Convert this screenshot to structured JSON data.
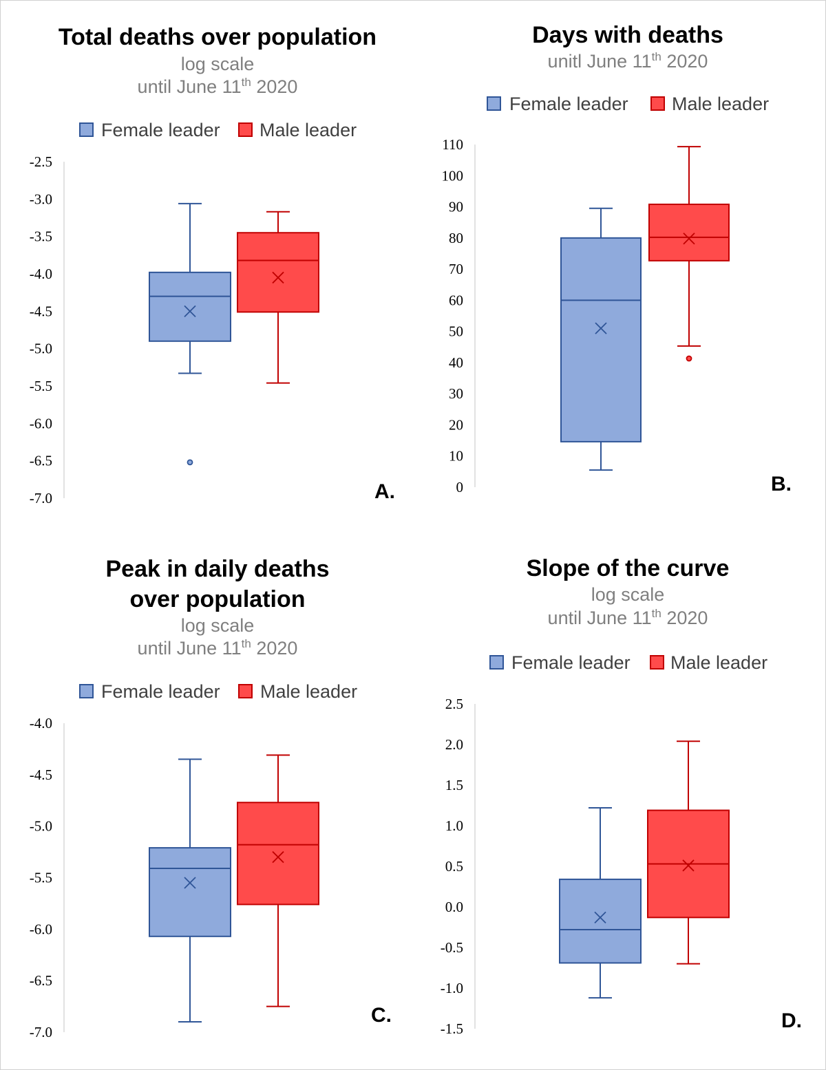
{
  "chart_data": [
    {
      "type": "box",
      "panel_label": "A.",
      "title": [
        "Total deaths over population"
      ],
      "subtitle": [
        {
          "text": "log scale"
        },
        {
          "text": "until June 11",
          "sup": "th",
          "after": " 2020"
        }
      ],
      "legend": [
        "Female leader",
        "Male leader"
      ],
      "ylim": [
        -7.0,
        -2.5
      ],
      "yticks": [
        "-2.5",
        "-3.0",
        "-3.5",
        "-4.0",
        "-4.5",
        "-5.0",
        "-5.5",
        "-6.0",
        "-6.5",
        "-7.0"
      ],
      "series": [
        {
          "name": "Female leader",
          "whisker_high": -3.06,
          "q3": -3.98,
          "median": -4.3,
          "mean": -4.5,
          "q1": -4.9,
          "whisker_low": -5.33,
          "outliers": [
            -6.52
          ]
        },
        {
          "name": "Male leader",
          "whisker_high": -3.17,
          "q3": -3.45,
          "median": -3.82,
          "mean": -4.05,
          "q1": -4.51,
          "whisker_low": -5.46,
          "outliers": []
        }
      ]
    },
    {
      "type": "box",
      "panel_label": "B.",
      "title": [
        "Days with deaths"
      ],
      "subtitle": [
        {
          "text": "unitl June 11",
          "sup": "th",
          "after": " 2020"
        }
      ],
      "legend": [
        "Female leader",
        "Male leader"
      ],
      "ylim": [
        0,
        110
      ],
      "yticks": [
        "110",
        "100",
        "90",
        "80",
        "70",
        "60",
        "50",
        "40",
        "30",
        "20",
        "10",
        "0"
      ],
      "series": [
        {
          "name": "Female leader",
          "whisker_high": 89.5,
          "q3": 80,
          "median": 60,
          "mean": 51,
          "q1": 14.6,
          "whisker_low": 5.5,
          "outliers": []
        },
        {
          "name": "Male leader",
          "whisker_high": 109.3,
          "q3": 90.8,
          "median": 80.2,
          "mean": 79.8,
          "q1": 72.7,
          "whisker_low": 45.3,
          "outliers": [
            41.3
          ]
        }
      ]
    },
    {
      "type": "box",
      "panel_label": "C.",
      "title": [
        "Peak in daily deaths",
        "over population"
      ],
      "subtitle": [
        {
          "text": "log scale"
        },
        {
          "text": "until June 11",
          "sup": "th",
          "after": " 2020"
        }
      ],
      "legend": [
        "Female leader",
        "Male leader"
      ],
      "ylim": [
        -7.0,
        -4.0
      ],
      "yticks": [
        "-4.0",
        "-4.5",
        "-5.0",
        "-5.5",
        "-6.0",
        "-6.5",
        "-7.0"
      ],
      "series": [
        {
          "name": "Female leader",
          "whisker_high": -4.35,
          "q3": -5.21,
          "median": -5.41,
          "mean": -5.55,
          "q1": -6.07,
          "whisker_low": -6.9,
          "outliers": []
        },
        {
          "name": "Male leader",
          "whisker_high": -4.31,
          "q3": -4.77,
          "median": -5.18,
          "mean": -5.3,
          "q1": -5.76,
          "whisker_low": -6.75,
          "outliers": []
        }
      ]
    },
    {
      "type": "box",
      "panel_label": "D.",
      "title": [
        "Slope of the curve"
      ],
      "subtitle": [
        {
          "text": "log scale"
        },
        {
          "text": "until June 11",
          "sup": "th",
          "after": " 2020"
        }
      ],
      "legend": [
        "Female leader",
        "Male leader"
      ],
      "ylim": [
        -1.5,
        2.5
      ],
      "yticks": [
        "2.5",
        "2.0",
        "1.5",
        "1.0",
        "0.5",
        "0.0",
        "-0.5",
        "-1.0",
        "-1.5"
      ],
      "series": [
        {
          "name": "Female leader",
          "whisker_high": 1.22,
          "q3": 0.34,
          "median": -0.28,
          "mean": -0.13,
          "q1": -0.69,
          "whisker_low": -1.12,
          "outliers": []
        },
        {
          "name": "Male leader",
          "whisker_high": 2.04,
          "q3": 1.19,
          "median": 0.53,
          "mean": 0.51,
          "q1": -0.13,
          "whisker_low": -0.7,
          "outliers": []
        }
      ]
    }
  ],
  "colors": {
    "female_fill": "#8faadc",
    "female_stroke": "#2f5597",
    "male_fill": "#ff4b4b",
    "male_stroke": "#c00000",
    "axis": "#d9d9d9"
  }
}
